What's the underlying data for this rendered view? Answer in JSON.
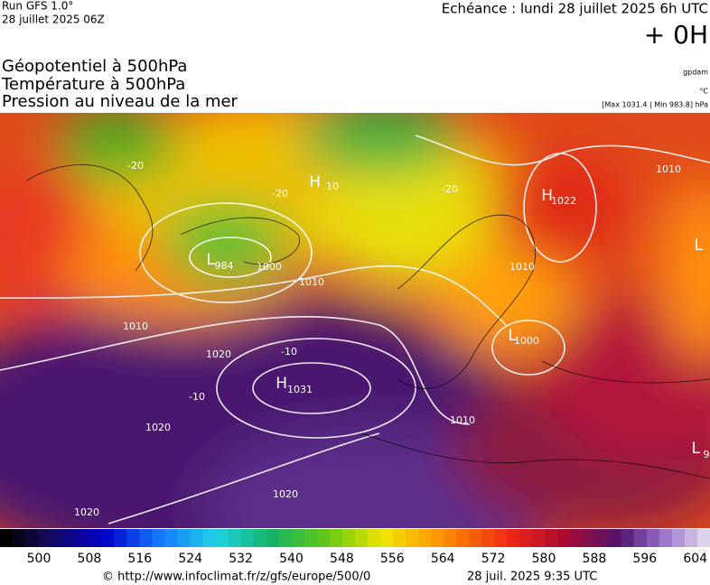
{
  "header": {
    "run": "Run GFS 1.0°",
    "run_date": "28 juillet 2025 06Z",
    "echeance": "Echéance : lundi 28 juillet 2025 6h UTC",
    "lead": "+ 0H",
    "titles": [
      "Géopotentiel à 500hPa",
      "Température à 500hPa",
      "Pression au niveau de la mer"
    ],
    "units": [
      "gpdam",
      "°C",
      "[Max 1031.4 | Min 983.8] hPa"
    ]
  },
  "map_labels": [
    "H",
    "1031",
    "L",
    "984",
    "H",
    "1022",
    "L",
    "1000",
    "H",
    "10",
    "1020",
    "1020",
    "1020",
    "1020",
    "1010",
    "1010",
    "1010",
    "1010",
    "1010",
    "1000",
    "-20",
    "-20",
    "-20",
    "-10",
    "-10",
    "L",
    "L",
    "9"
  ],
  "colorbar": {
    "ticks": [
      500,
      508,
      516,
      524,
      532,
      540,
      548,
      556,
      564,
      572,
      580,
      588,
      596,
      604
    ]
  },
  "footer": {
    "url": "© http://www.infoclimat.fr/z/gfs/europe/500/0",
    "time": "28 juil. 2025  9:35 UTC"
  }
}
